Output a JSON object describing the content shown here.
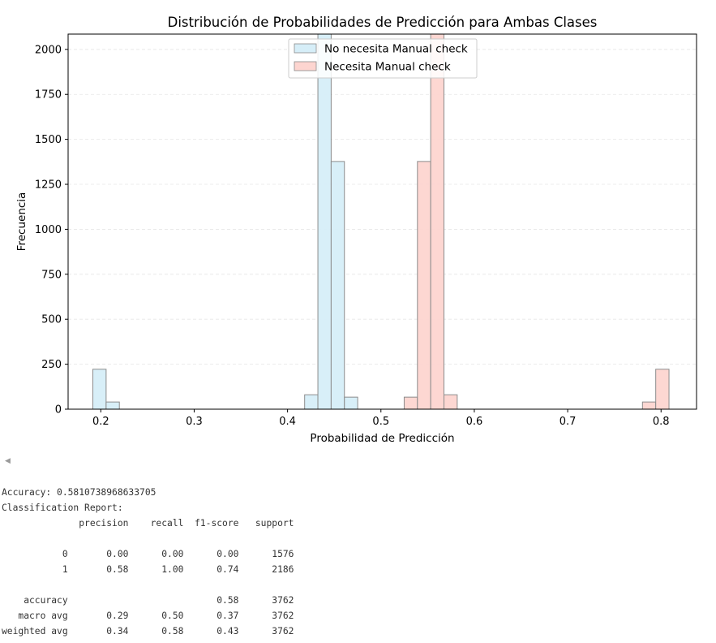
{
  "chart_data": {
    "type": "bar",
    "title": "Distribución de Probabilidades de Predicción para Ambas Clases",
    "xlabel": "Probabilidad de Predicción",
    "ylabel": "Frecuencia",
    "xlim": [
      0.165,
      0.838
    ],
    "ylim": [
      0,
      2085
    ],
    "xticks": [
      0.2,
      0.3,
      0.4,
      0.5,
      0.6,
      0.7,
      0.8
    ],
    "xtick_labels": [
      "0.2",
      "0.3",
      "0.4",
      "0.5",
      "0.6",
      "0.7",
      "0.8"
    ],
    "yticks": [
      0,
      250,
      500,
      750,
      1000,
      1250,
      1500,
      1750,
      2000
    ],
    "ytick_labels": [
      "0",
      "250",
      "500",
      "750",
      "1000",
      "1250",
      "1500",
      "1750",
      "2000"
    ],
    "grid": "y-dashed-light",
    "legend_position": "top-center",
    "series": [
      {
        "name": "No necesita Manual check",
        "color": "#d6eef8",
        "bins": [
          {
            "x0": 0.1915,
            "x1": 0.2057,
            "value": 222
          },
          {
            "x0": 0.2057,
            "x1": 0.2199,
            "value": 40
          },
          {
            "x0": 0.4183,
            "x1": 0.4325,
            "value": 80
          },
          {
            "x0": 0.4325,
            "x1": 0.4467,
            "value": 2085
          },
          {
            "x0": 0.4467,
            "x1": 0.4609,
            "value": 1377
          },
          {
            "x0": 0.4609,
            "x1": 0.4751,
            "value": 67
          }
        ]
      },
      {
        "name": "Necesita Manual check",
        "color": "#fdd5d0",
        "bins": [
          {
            "x0": 0.5249,
            "x1": 0.5391,
            "value": 67
          },
          {
            "x0": 0.5391,
            "x1": 0.5533,
            "value": 1377
          },
          {
            "x0": 0.5533,
            "x1": 0.5675,
            "value": 2085
          },
          {
            "x0": 0.5675,
            "x1": 0.5817,
            "value": 80
          },
          {
            "x0": 0.7801,
            "x1": 0.7943,
            "value": 40
          },
          {
            "x0": 0.7943,
            "x1": 0.8085,
            "value": 222
          }
        ]
      }
    ]
  },
  "output": {
    "lines": [
      "Accuracy: 0.5810738968633705",
      "Classification Report:",
      "              precision    recall  f1-score   support",
      "",
      "           0       0.00      0.00      0.00      1576",
      "           1       0.58      1.00      0.74      2186",
      "",
      "    accuracy                           0.58      3762",
      "   macro avg       0.29      0.50      0.37      3762",
      "weighted avg       0.34      0.58      0.43      3762"
    ]
  }
}
